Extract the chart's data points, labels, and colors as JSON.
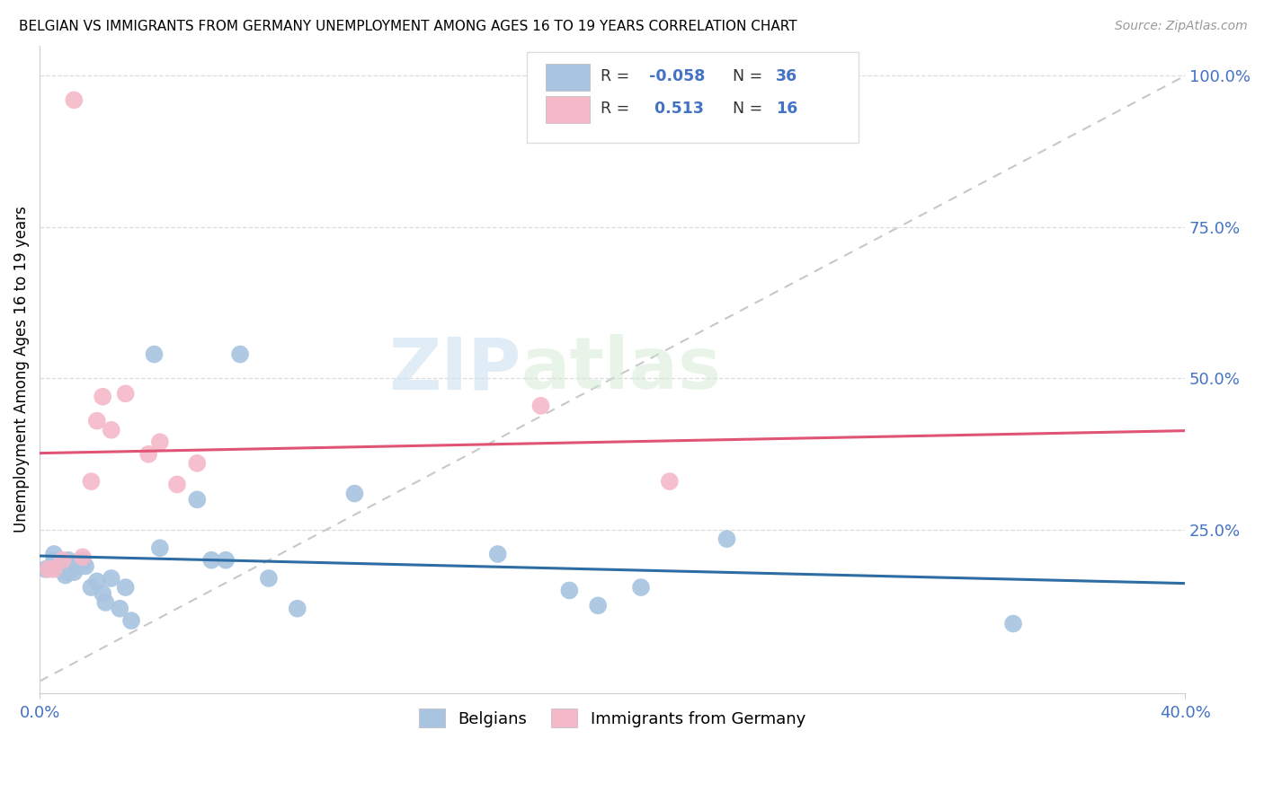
{
  "title": "BELGIAN VS IMMIGRANTS FROM GERMANY UNEMPLOYMENT AMONG AGES 16 TO 19 YEARS CORRELATION CHART",
  "source": "Source: ZipAtlas.com",
  "ylabel": "Unemployment Among Ages 16 to 19 years",
  "xlim": [
    0.0,
    0.4
  ],
  "ylim": [
    -0.02,
    1.05
  ],
  "xticks": [
    0.0,
    0.4
  ],
  "xtick_labels": [
    "0.0%",
    "40.0%"
  ],
  "yticks_right": [
    0.25,
    0.5,
    0.75,
    1.0
  ],
  "ytick_labels_right": [
    "25.0%",
    "50.0%",
    "75.0%",
    "100.0%"
  ],
  "blue_color": "#a8c4e0",
  "pink_color": "#f4b8c8",
  "blue_line_color": "#2e6da4",
  "pink_line_color": "#e05575",
  "ref_line_color": "#c8c8c8",
  "legend_label1": "Belgians",
  "legend_label2": "Immigrants from Germany",
  "watermark_zip": "ZIP",
  "watermark_atlas": "atlas",
  "blue_x": [
    0.002,
    0.005,
    0.005,
    0.007,
    0.008,
    0.009,
    0.01,
    0.01,
    0.012,
    0.013,
    0.015,
    0.015,
    0.016,
    0.018,
    0.02,
    0.022,
    0.023,
    0.025,
    0.028,
    0.03,
    0.032,
    0.04,
    0.042,
    0.055,
    0.06,
    0.065,
    0.07,
    0.08,
    0.09,
    0.11,
    0.16,
    0.185,
    0.195,
    0.21,
    0.24,
    0.34
  ],
  "blue_y": [
    0.185,
    0.2,
    0.21,
    0.185,
    0.195,
    0.175,
    0.2,
    0.18,
    0.18,
    0.19,
    0.2,
    0.195,
    0.19,
    0.155,
    0.165,
    0.145,
    0.13,
    0.17,
    0.12,
    0.155,
    0.1,
    0.54,
    0.22,
    0.3,
    0.2,
    0.2,
    0.54,
    0.17,
    0.12,
    0.31,
    0.21,
    0.15,
    0.125,
    0.155,
    0.235,
    0.095
  ],
  "pink_x": [
    0.003,
    0.005,
    0.008,
    0.012,
    0.015,
    0.018,
    0.02,
    0.022,
    0.025,
    0.03,
    0.038,
    0.042,
    0.048,
    0.055,
    0.175,
    0.22
  ],
  "pink_y": [
    0.185,
    0.185,
    0.2,
    0.96,
    0.205,
    0.33,
    0.43,
    0.47,
    0.415,
    0.475,
    0.375,
    0.395,
    0.325,
    0.36,
    0.455,
    0.33
  ],
  "grid_yticks": [
    0.25,
    0.5,
    0.75,
    1.0
  ],
  "grid_color": "#dddddd"
}
